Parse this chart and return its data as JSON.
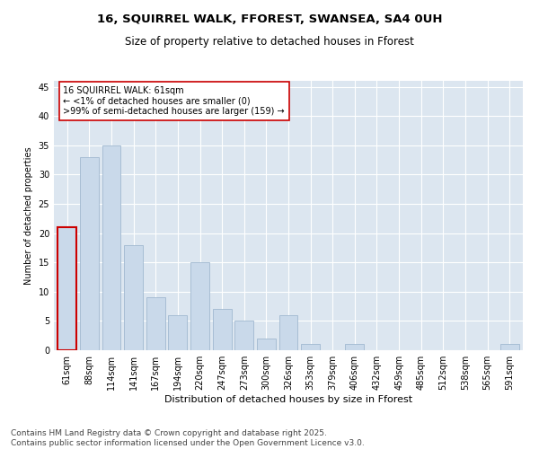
{
  "title1": "16, SQUIRREL WALK, FFOREST, SWANSEA, SA4 0UH",
  "title2": "Size of property relative to detached houses in Fforest",
  "xlabel": "Distribution of detached houses by size in Fforest",
  "ylabel": "Number of detached properties",
  "categories": [
    "61sqm",
    "88sqm",
    "114sqm",
    "141sqm",
    "167sqm",
    "194sqm",
    "220sqm",
    "247sqm",
    "273sqm",
    "300sqm",
    "326sqm",
    "353sqm",
    "379sqm",
    "406sqm",
    "432sqm",
    "459sqm",
    "485sqm",
    "512sqm",
    "538sqm",
    "565sqm",
    "591sqm"
  ],
  "values": [
    21,
    33,
    35,
    18,
    9,
    6,
    15,
    7,
    5,
    2,
    6,
    1,
    0,
    1,
    0,
    0,
    0,
    0,
    0,
    0,
    1
  ],
  "bar_color": "#c9d9ea",
  "bar_edge_color": "#a0b8d0",
  "highlight_bar_edge_color": "#cc0000",
  "annotation_box_text": "16 SQUIRREL WALK: 61sqm\n← <1% of detached houses are smaller (0)\n>99% of semi-detached houses are larger (159) →",
  "ylim": [
    0,
    46
  ],
  "yticks": [
    0,
    5,
    10,
    15,
    20,
    25,
    30,
    35,
    40,
    45
  ],
  "bg_color": "#dce6f0",
  "footer_text": "Contains HM Land Registry data © Crown copyright and database right 2025.\nContains public sector information licensed under the Open Government Licence v3.0.",
  "title_fontsize": 9.5,
  "subtitle_fontsize": 8.5,
  "axis_label_fontsize": 8,
  "tick_fontsize": 7,
  "annotation_fontsize": 7,
  "footer_fontsize": 6.5,
  "ylabel_fontsize": 7
}
